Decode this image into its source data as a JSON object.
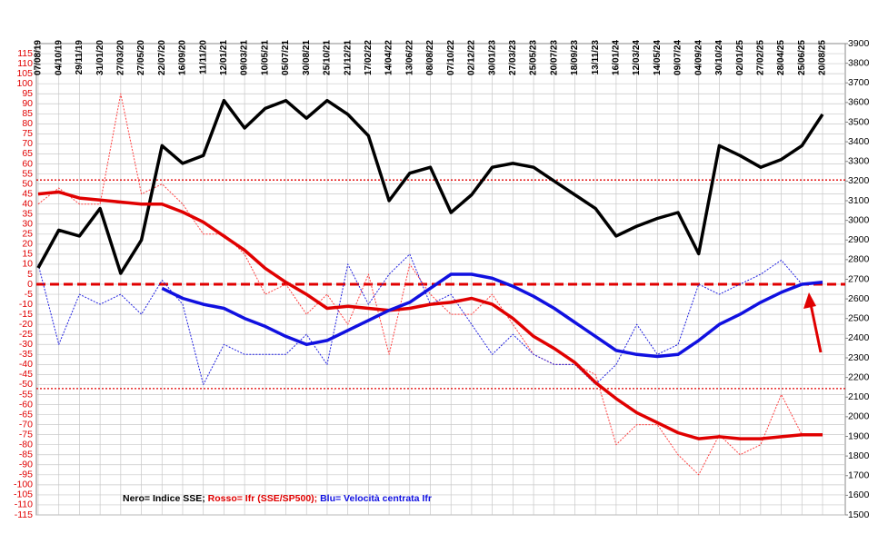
{
  "chart_data": {
    "type": "line",
    "legend": {
      "black": "Nero= Indice SSE;",
      "red": "Rosso= Ifr (SSE/SP500);",
      "blue": "Blu= Velocità centrata Ifr"
    },
    "categories": [
      "07/08/19",
      "04/10/19",
      "29/11/19",
      "31/01/20",
      "27/03/20",
      "27/05/20",
      "22/07/20",
      "16/09/20",
      "11/11/20",
      "12/01/21",
      "09/03/21",
      "10/05/21",
      "05/07/21",
      "30/08/21",
      "25/10/21",
      "21/12/21",
      "17/02/22",
      "14/04/22",
      "13/06/22",
      "08/08/22",
      "07/10/22",
      "02/12/22",
      "30/01/23",
      "27/03/23",
      "25/05/23",
      "20/07/23",
      "18/09/23",
      "13/11/23",
      "16/01/24",
      "12/03/24",
      "14/05/24",
      "09/07/24",
      "04/09/24",
      "30/10/24",
      "02/01/25",
      "27/02/25",
      "28/04/25",
      "25/06/25",
      "20/08/25"
    ],
    "series": [
      {
        "color": "#ff4040",
        "style": "dotted",
        "values": [
          40,
          48,
          40,
          40,
          95,
          45,
          50,
          40,
          25,
          25,
          15,
          -5,
          0,
          -15,
          -5,
          -20,
          5,
          -35,
          10,
          -5,
          -15,
          -15,
          -5,
          -20,
          -35,
          -40,
          -40,
          -45,
          -80,
          -70,
          -70,
          -85,
          -95,
          -75,
          -85,
          -80,
          -55,
          -75,
          -75
        ]
      },
      {
        "color": "#2020e0",
        "style": "dotted",
        "values": [
          10,
          -30,
          -5,
          -10,
          -5,
          -15,
          2,
          -10,
          -50,
          -30,
          -35,
          -35,
          -35,
          -25,
          -40,
          10,
          -10,
          5,
          15,
          -10,
          -5,
          -20,
          -35,
          -25,
          -35,
          -40,
          -40,
          -50,
          -40,
          -20,
          -35,
          -30,
          0,
          -5,
          0,
          5,
          12,
          0,
          null
        ]
      },
      {
        "color": "#000000",
        "style": "solid",
        "axis": "y2",
        "values": [
          2758,
          2950,
          2920,
          3060,
          2730,
          2900,
          3380,
          3290,
          3330,
          3610,
          3470,
          3570,
          3610,
          3520,
          3610,
          3540,
          3430,
          3100,
          3240,
          3270,
          3040,
          3130,
          3270,
          3290,
          3270,
          3200,
          3130,
          3060,
          2920,
          2970,
          3010,
          3040,
          2830,
          3380,
          3330,
          3270,
          3310,
          3380,
          3540
        ]
      },
      {
        "color": "#e00000",
        "style": "solid",
        "values": [
          45,
          46,
          43,
          42,
          41,
          40,
          40,
          36,
          31,
          24,
          17,
          8,
          1,
          -5,
          -12,
          -11,
          -12,
          -13,
          -12,
          -10,
          -9,
          -7,
          -10,
          -17,
          -26,
          -32,
          -39,
          -49,
          -57,
          -64,
          -69,
          -74,
          -77,
          -76,
          -77,
          -77,
          -76,
          -75,
          -75
        ]
      },
      {
        "color": "#1010e0",
        "style": "solid",
        "values": [
          null,
          null,
          null,
          null,
          null,
          null,
          -2,
          -7,
          -10,
          -12,
          -17,
          -21,
          -26,
          -30,
          -28,
          -23,
          -18,
          -13,
          -9,
          -2,
          5,
          5,
          3,
          -1,
          -6,
          -12,
          -19,
          -26,
          -33,
          -35,
          -36,
          -35,
          -28,
          -20,
          -15,
          -9,
          -4,
          0,
          1
        ]
      }
    ],
    "ylim": [
      -115,
      120
    ],
    "yticks": [
      -115,
      -110,
      -105,
      -100,
      -95,
      -90,
      -85,
      -80,
      -75,
      -70,
      -65,
      -60,
      -55,
      -50,
      -45,
      -40,
      -35,
      -30,
      -25,
      -20,
      -15,
      -10,
      -5,
      0,
      5,
      10,
      15,
      20,
      25,
      30,
      35,
      40,
      45,
      50,
      55,
      60,
      65,
      70,
      75,
      80,
      85,
      90,
      95,
      100,
      105,
      110,
      115
    ],
    "y2lim": [
      1500,
      3900
    ],
    "y2ticks": [
      1500,
      1600,
      1700,
      1800,
      1900,
      2000,
      2100,
      2200,
      2300,
      2400,
      2500,
      2600,
      2700,
      2800,
      2900,
      3000,
      3100,
      3200,
      3300,
      3400,
      3500,
      3600,
      3700,
      3800,
      3900
    ],
    "hlines": [
      {
        "value": 52,
        "style": "dotted",
        "color": "#e00000"
      },
      {
        "value": -52,
        "style": "dotted",
        "color": "#e00000"
      },
      {
        "value": 0,
        "style": "dashed",
        "color": "#e00000"
      }
    ],
    "grid": true
  }
}
